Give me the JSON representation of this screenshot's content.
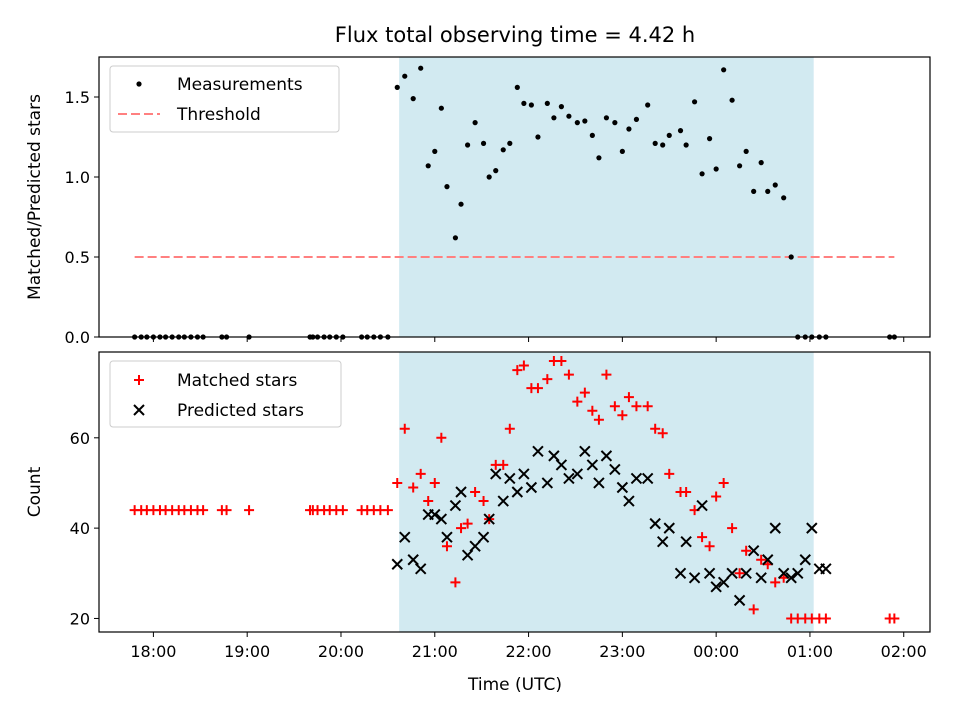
{
  "figure": {
    "title": "Flux total observing time = 4.42 h",
    "xlabel": "Time (UTC)"
  },
  "colors": {
    "shade": "#add8e6",
    "threshold": "#ff8080",
    "matched": "#ff0000",
    "predicted": "#000000",
    "measurements": "#000000"
  },
  "chart_data": [
    {
      "type": "scatter",
      "panel": "top",
      "ylabel": "Matched/Predicted stars",
      "xlim": [
        17.42,
        26.28
      ],
      "ylim": [
        0,
        1.75
      ],
      "x_ticks": [
        "18:00",
        "19:00",
        "20:00",
        "21:00",
        "22:00",
        "23:00",
        "00:00",
        "01:00",
        "02:00"
      ],
      "y_ticks": [
        "0.0",
        "0.5",
        "1.0",
        "1.5"
      ],
      "shaded_interval": [
        20.62,
        25.04
      ],
      "threshold": 0.5,
      "legend_position": "upper left",
      "legend": [
        "Measurements",
        "Threshold"
      ],
      "grid": false,
      "x": [
        17.8,
        17.87,
        17.93,
        18.0,
        18.07,
        18.13,
        18.2,
        18.27,
        18.33,
        18.4,
        18.47,
        18.53,
        18.73,
        18.78,
        19.02,
        19.67,
        19.7,
        19.75,
        19.82,
        19.88,
        19.95,
        20.02,
        20.22,
        20.28,
        20.35,
        20.42,
        20.5,
        20.6,
        20.68,
        20.77,
        20.85,
        20.93,
        21.0,
        21.07,
        21.13,
        21.22,
        21.28,
        21.35,
        21.43,
        21.52,
        21.58,
        21.65,
        21.73,
        21.8,
        21.88,
        21.95,
        22.03,
        22.1,
        22.2,
        22.27,
        22.35,
        22.43,
        22.52,
        22.6,
        22.68,
        22.75,
        22.83,
        22.92,
        23.0,
        23.07,
        23.15,
        23.27,
        23.35,
        23.43,
        23.5,
        23.62,
        23.68,
        23.77,
        23.85,
        23.93,
        24.0,
        24.08,
        24.17,
        24.25,
        24.32,
        24.4,
        24.48,
        24.55,
        24.63,
        24.72,
        24.8,
        24.87,
        24.95,
        25.02,
        25.1,
        25.17,
        25.85,
        25.9
      ],
      "y": [
        0,
        0,
        0,
        0,
        0,
        0,
        0,
        0,
        0,
        0,
        0,
        0,
        0,
        0,
        0,
        0,
        0,
        0,
        0,
        0,
        0,
        0,
        0,
        0,
        0,
        0,
        0,
        1.56,
        1.63,
        1.49,
        1.68,
        1.07,
        1.16,
        1.43,
        0.94,
        0.62,
        0.83,
        1.2,
        1.34,
        1.21,
        1.0,
        1.04,
        1.17,
        1.21,
        1.56,
        1.46,
        1.45,
        1.25,
        1.46,
        1.37,
        1.44,
        1.38,
        1.34,
        1.35,
        1.26,
        1.12,
        1.37,
        1.34,
        1.16,
        1.3,
        1.36,
        1.45,
        1.21,
        1.2,
        1.26,
        1.29,
        1.2,
        1.47,
        1.02,
        1.24,
        1.05,
        1.67,
        1.48,
        1.07,
        1.16,
        0.91,
        1.09,
        0.91,
        0.95,
        0.87,
        0.5,
        0,
        0,
        0,
        0,
        0,
        0,
        0
      ]
    },
    {
      "type": "scatter",
      "panel": "bottom",
      "ylabel": "Count",
      "xlim": [
        17.42,
        26.28
      ],
      "ylim": [
        17,
        79
      ],
      "x_ticks": [
        "18:00",
        "19:00",
        "20:00",
        "21:00",
        "22:00",
        "23:00",
        "00:00",
        "01:00",
        "02:00"
      ],
      "y_ticks": [
        "20",
        "40",
        "60"
      ],
      "shaded_interval": [
        20.62,
        25.04
      ],
      "legend_position": "upper left",
      "legend": [
        "Matched stars",
        "Predicted stars"
      ],
      "grid": false,
      "series": [
        {
          "name": "Matched stars",
          "marker": "plus",
          "x": [
            17.8,
            17.87,
            17.93,
            18.0,
            18.07,
            18.13,
            18.2,
            18.27,
            18.33,
            18.4,
            18.47,
            18.53,
            18.73,
            18.78,
            19.02,
            19.67,
            19.7,
            19.75,
            19.82,
            19.88,
            19.95,
            20.02,
            20.22,
            20.28,
            20.35,
            20.42,
            20.5,
            20.6,
            20.68,
            20.77,
            20.85,
            20.93,
            21.0,
            21.07,
            21.13,
            21.22,
            21.28,
            21.35,
            21.43,
            21.52,
            21.58,
            21.65,
            21.73,
            21.8,
            21.88,
            21.95,
            22.03,
            22.1,
            22.2,
            22.27,
            22.35,
            22.43,
            22.52,
            22.6,
            22.68,
            22.75,
            22.83,
            22.92,
            23.0,
            23.07,
            23.15,
            23.27,
            23.35,
            23.43,
            23.5,
            23.62,
            23.68,
            23.77,
            23.85,
            23.93,
            24.0,
            24.08,
            24.17,
            24.25,
            24.32,
            24.4,
            24.48,
            24.55,
            24.63,
            24.72,
            24.8,
            24.87,
            24.95,
            25.02,
            25.1,
            25.17,
            25.85,
            25.9
          ],
          "y": [
            44,
            44,
            44,
            44,
            44,
            44,
            44,
            44,
            44,
            44,
            44,
            44,
            44,
            44,
            44,
            44,
            44,
            44,
            44,
            44,
            44,
            44,
            44,
            44,
            44,
            44,
            44,
            50,
            62,
            49,
            52,
            46,
            50,
            60,
            36,
            28,
            40,
            41,
            48,
            46,
            42,
            54,
            54,
            62,
            75,
            76,
            71,
            71,
            73,
            77,
            77,
            74,
            68,
            70,
            66,
            64,
            74,
            67,
            65,
            69,
            67,
            67,
            62,
            61,
            52,
            48,
            48,
            44,
            38,
            36,
            47,
            50,
            40,
            30,
            35,
            22,
            33,
            32,
            28,
            29,
            20,
            20,
            20,
            20,
            20,
            20,
            20,
            20
          ]
        },
        {
          "name": "Predicted stars",
          "marker": "x",
          "x": [
            20.6,
            20.68,
            20.77,
            20.85,
            20.93,
            21.0,
            21.07,
            21.13,
            21.22,
            21.28,
            21.35,
            21.43,
            21.52,
            21.58,
            21.65,
            21.73,
            21.8,
            21.88,
            21.95,
            22.03,
            22.1,
            22.2,
            22.27,
            22.35,
            22.43,
            22.52,
            22.6,
            22.68,
            22.75,
            22.83,
            22.92,
            23.0,
            23.07,
            23.15,
            23.27,
            23.35,
            23.43,
            23.5,
            23.62,
            23.68,
            23.77,
            23.85,
            23.93,
            24.0,
            24.08,
            24.17,
            24.25,
            24.32,
            24.4,
            24.48,
            24.55,
            24.63,
            24.72,
            24.8,
            24.87,
            24.95,
            25.02,
            25.1,
            25.17
          ],
          "y": [
            32,
            38,
            33,
            31,
            43,
            43,
            42,
            38,
            45,
            48,
            34,
            36,
            38,
            42,
            52,
            46,
            51,
            48,
            52,
            49,
            57,
            50,
            56,
            54,
            51,
            52,
            57,
            54,
            50,
            56,
            53,
            49,
            46,
            51,
            51,
            41,
            37,
            40,
            30,
            37,
            29,
            45,
            30,
            27,
            28,
            30,
            24,
            30,
            35,
            29,
            33,
            40,
            30,
            29,
            30,
            33,
            40,
            31,
            31
          ]
        }
      ]
    }
  ]
}
